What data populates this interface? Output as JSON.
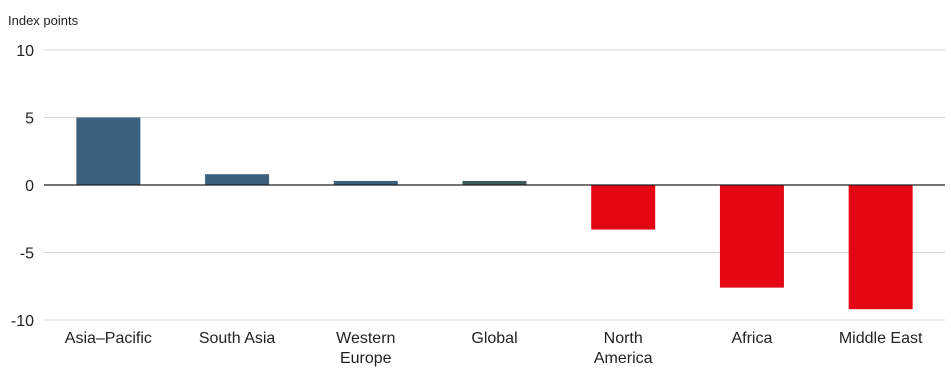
{
  "chart_data": {
    "type": "bar",
    "title": "",
    "xlabel": "",
    "ylabel": "Index points",
    "categories": [
      [
        "Asia–Pacific"
      ],
      [
        "South Asia"
      ],
      [
        "Western",
        "Europe"
      ],
      [
        "Global"
      ],
      [
        "North",
        "America"
      ],
      [
        "Africa"
      ],
      [
        "Middle East"
      ]
    ],
    "values": [
      5.0,
      0.8,
      0.3,
      0.3,
      -3.3,
      -7.6,
      -9.2
    ],
    "bar_colors": [
      "#3b617e",
      "#3b617e",
      "#3b617e",
      "#3e5a5b",
      "#e30613",
      "#e30613",
      "#e30613"
    ],
    "ylim": [
      -10,
      10
    ],
    "yticks": [
      10,
      5,
      0,
      -5,
      -10
    ],
    "grid": true,
    "legend": "none"
  },
  "colors": {
    "grid": "#d4d4d4",
    "zero_line": "#222222",
    "text": "#222222"
  }
}
